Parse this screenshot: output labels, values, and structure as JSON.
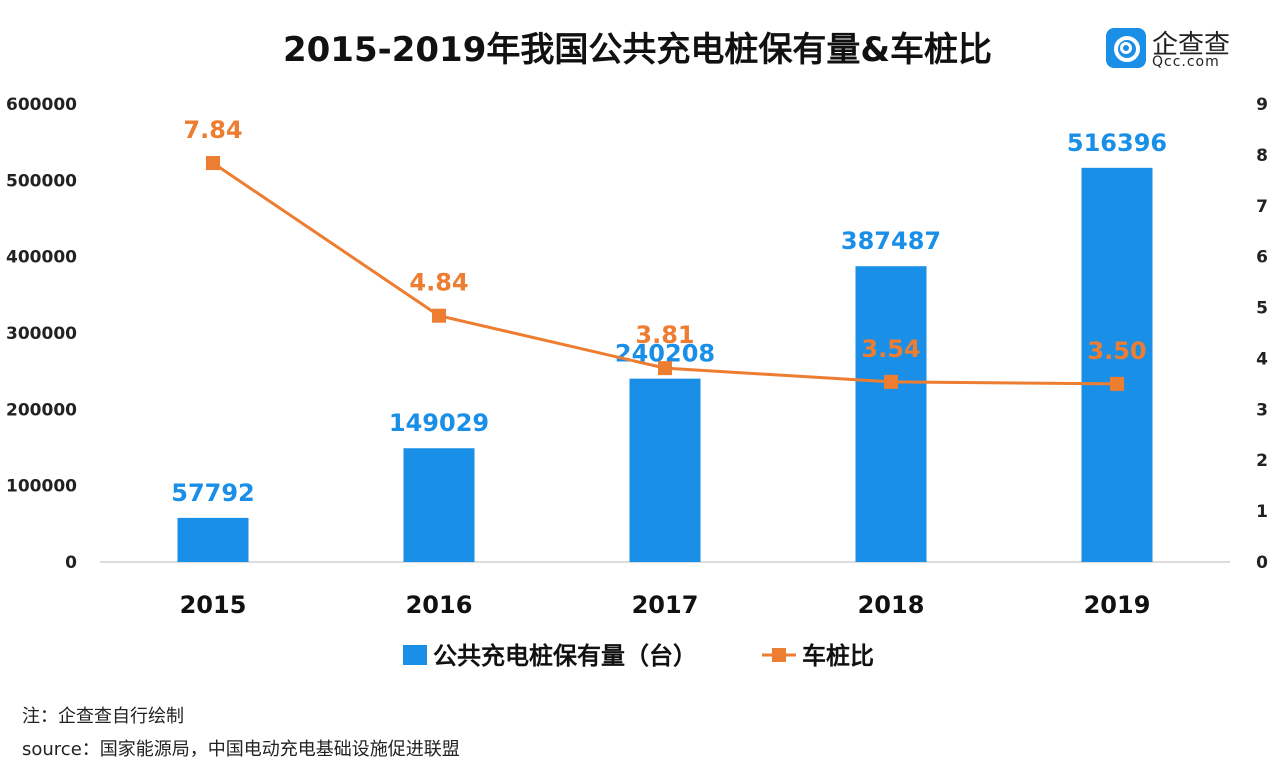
{
  "brand": {
    "name_cn": "企查查",
    "name_en": "Qcc.com"
  },
  "footer": {
    "note": "注：企查查自行绘制",
    "source": "source：国家能源局，中国电动充电基础设施促进联盟"
  },
  "colors": {
    "bar": "#1a8fe8",
    "line": "#ed7d31",
    "axis": "#d0d0d0",
    "text": "#222222"
  },
  "chart_data": {
    "type": "bar+line",
    "title": "2015-2019年我国公共充电桩保有量&车桩比",
    "categories": [
      "2015",
      "2016",
      "2017",
      "2018",
      "2019"
    ],
    "series": [
      {
        "name": "公共充电桩保有量（台）",
        "type": "bar",
        "axis": "left",
        "values": [
          57792,
          149029,
          240208,
          387487,
          516396
        ],
        "labels": [
          "57792",
          "149029",
          "240208",
          "387487",
          "516396"
        ]
      },
      {
        "name": "车桩比",
        "type": "line",
        "axis": "right",
        "values": [
          7.84,
          4.84,
          3.81,
          3.54,
          3.5
        ],
        "labels": [
          "7.84",
          "4.84",
          "3.81",
          "3.54",
          "3.50"
        ]
      }
    ],
    "y_left": {
      "min": 0,
      "max": 600000,
      "ticks": [
        "0",
        "100000",
        "200000",
        "300000",
        "400000",
        "500000",
        "600000"
      ]
    },
    "y_right": {
      "min": 0,
      "max": 9,
      "ticks": [
        "0",
        "1",
        "2",
        "3",
        "4",
        "5",
        "6",
        "7",
        "8",
        "9"
      ]
    },
    "grid": false,
    "legend_position": "bottom"
  }
}
